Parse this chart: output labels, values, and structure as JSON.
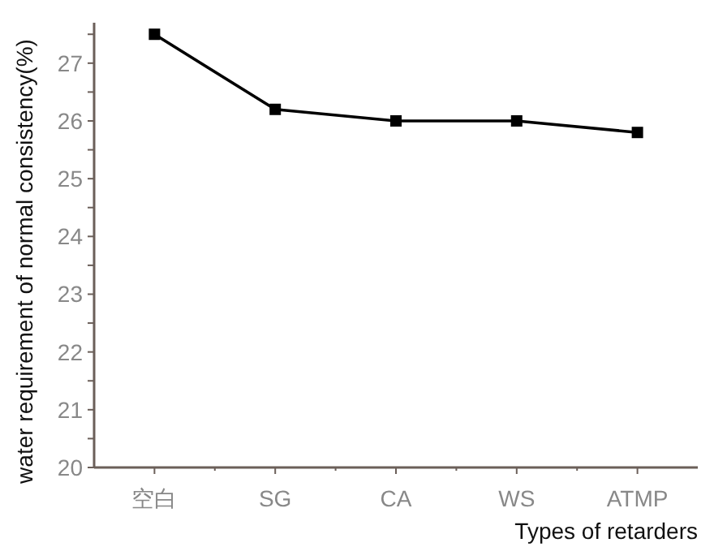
{
  "chart_data": {
    "type": "line",
    "xlabel": "Types of retarders",
    "ylabel": "water requirement of normal consistency(%)",
    "categories": [
      "空白",
      "SG",
      "CA",
      "WS",
      "ATMP"
    ],
    "series": [
      {
        "color": "#000000",
        "values": [
          27.5,
          26.2,
          26.0,
          26.0,
          25.8
        ]
      }
    ],
    "ylim": [
      20,
      27.7
    ],
    "yticks": [
      20,
      {
        "value": 20.5,
        "label": null
      },
      21,
      {
        "value": 21.5,
        "label": null
      },
      22,
      {
        "value": 22.5,
        "label": null
      },
      23,
      {
        "value": 23.5,
        "label": null
      },
      24,
      {
        "value": 24.5,
        "label": null
      },
      25,
      {
        "value": 25.5,
        "label": null
      },
      26,
      {
        "value": 26.5,
        "label": null
      },
      27,
      {
        "value": 27.5,
        "label": null
      }
    ],
    "marker": "square",
    "line_style": "solid",
    "grid": false
  }
}
